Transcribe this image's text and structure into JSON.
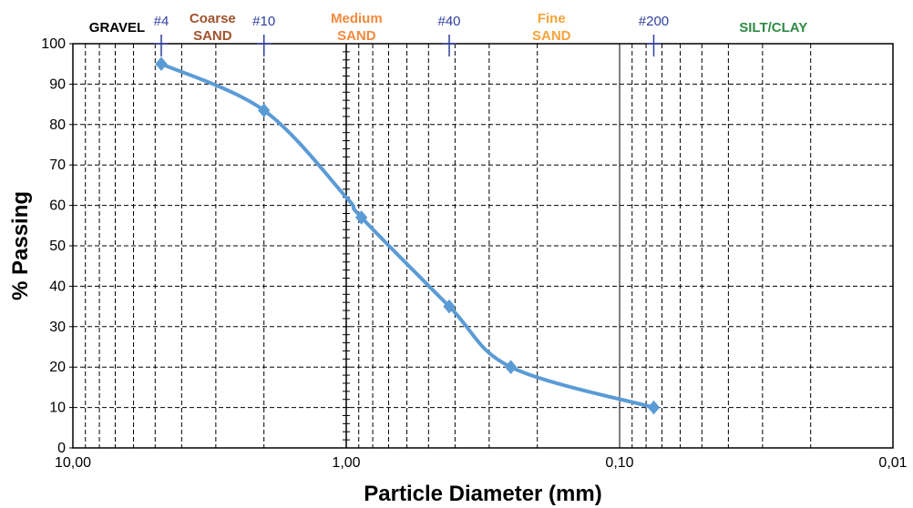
{
  "chart_data": {
    "type": "line",
    "xlabel": "Particle Diameter (mm)",
    "ylabel": "% Passing",
    "x_scale": "log",
    "x_reversed": true,
    "xlim": [
      10,
      0.01
    ],
    "ylim": [
      0,
      100
    ],
    "grid": true,
    "x_tick_labels": [
      {
        "value": 10,
        "label": "10,00"
      },
      {
        "value": 1,
        "label": "1,00"
      },
      {
        "value": 0.1,
        "label": "0,10"
      },
      {
        "value": 0.01,
        "label": "0,01"
      }
    ],
    "y_tick_labels": [
      {
        "value": 0,
        "label": "0"
      },
      {
        "value": 10,
        "label": "10"
      },
      {
        "value": 20,
        "label": "20"
      },
      {
        "value": 30,
        "label": "30"
      },
      {
        "value": 40,
        "label": "40"
      },
      {
        "value": 50,
        "label": "50"
      },
      {
        "value": 60,
        "label": "60"
      },
      {
        "value": 70,
        "label": "70"
      },
      {
        "value": 80,
        "label": "80"
      },
      {
        "value": 90,
        "label": "90"
      },
      {
        "value": 100,
        "label": "100"
      }
    ],
    "series": [
      {
        "color": "#5b9bd5",
        "points": [
          {
            "x": 4.75,
            "y": 95
          },
          {
            "x": 2.0,
            "y": 83.5
          },
          {
            "x": 1.0,
            "y": 62
          },
          {
            "x": 0.88,
            "y": 57
          },
          {
            "x": 0.42,
            "y": 35
          },
          {
            "x": 0.25,
            "y": 20
          },
          {
            "x": 0.075,
            "y": 10
          }
        ]
      }
    ],
    "sieves": [
      {
        "label": "#4",
        "x": 4.75
      },
      {
        "label": "#10",
        "x": 2.0
      },
      {
        "label": "#40",
        "x": 0.42
      },
      {
        "label": "#200",
        "x": 0.075
      }
    ],
    "zones": [
      {
        "lines": [
          "GRAVEL"
        ],
        "color": "#000000"
      },
      {
        "lines": [
          "Coarse",
          "SAND"
        ],
        "color": "#a0522d"
      },
      {
        "lines": [
          "Medium",
          "SAND"
        ],
        "color": "#f4893c"
      },
      {
        "lines": [
          "Fine",
          "SAND"
        ],
        "color": "#f5a33a"
      },
      {
        "lines": [
          "SILT/CLAY"
        ],
        "color": "#2f8a45"
      }
    ]
  }
}
